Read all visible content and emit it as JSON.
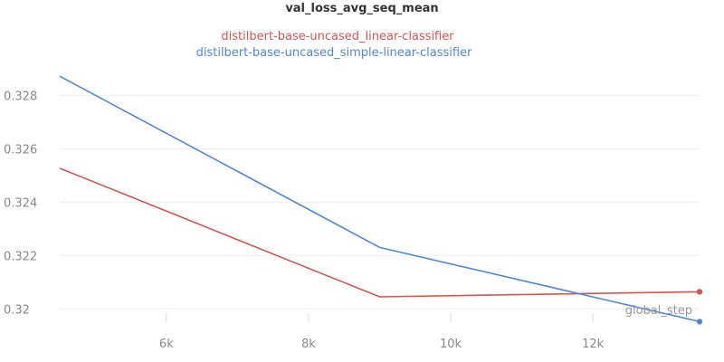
{
  "chart_data": {
    "type": "line",
    "title": "val_loss_avg_seq_mean",
    "xlabel": "global_step",
    "ylabel": "",
    "xlim": [
      4500,
      13500
    ],
    "ylim": [
      0.3195,
      0.3292
    ],
    "x_ticks": [
      6000,
      8000,
      10000,
      12000
    ],
    "x_tick_labels": [
      "6k",
      "8k",
      "10k",
      "12k"
    ],
    "y_ticks": [
      0.32,
      0.322,
      0.324,
      0.326,
      0.328
    ],
    "y_tick_labels": [
      "0.32",
      "0.322",
      "0.324",
      "0.326",
      "0.328"
    ],
    "grid": true,
    "legend_position": "top-center",
    "series": [
      {
        "name": "distilbert-base-uncased_linear-classifier",
        "color": "#d9534f",
        "x": [
          4500,
          9000,
          13500
        ],
        "y": [
          0.32527,
          0.32045,
          0.32064
        ]
      },
      {
        "name": "distilbert-base-uncased_simple-linear-classifier",
        "color": "#4f86d9",
        "x": [
          4500,
          9000,
          13500
        ],
        "y": [
          0.32872,
          0.3223,
          0.31952
        ]
      }
    ]
  }
}
